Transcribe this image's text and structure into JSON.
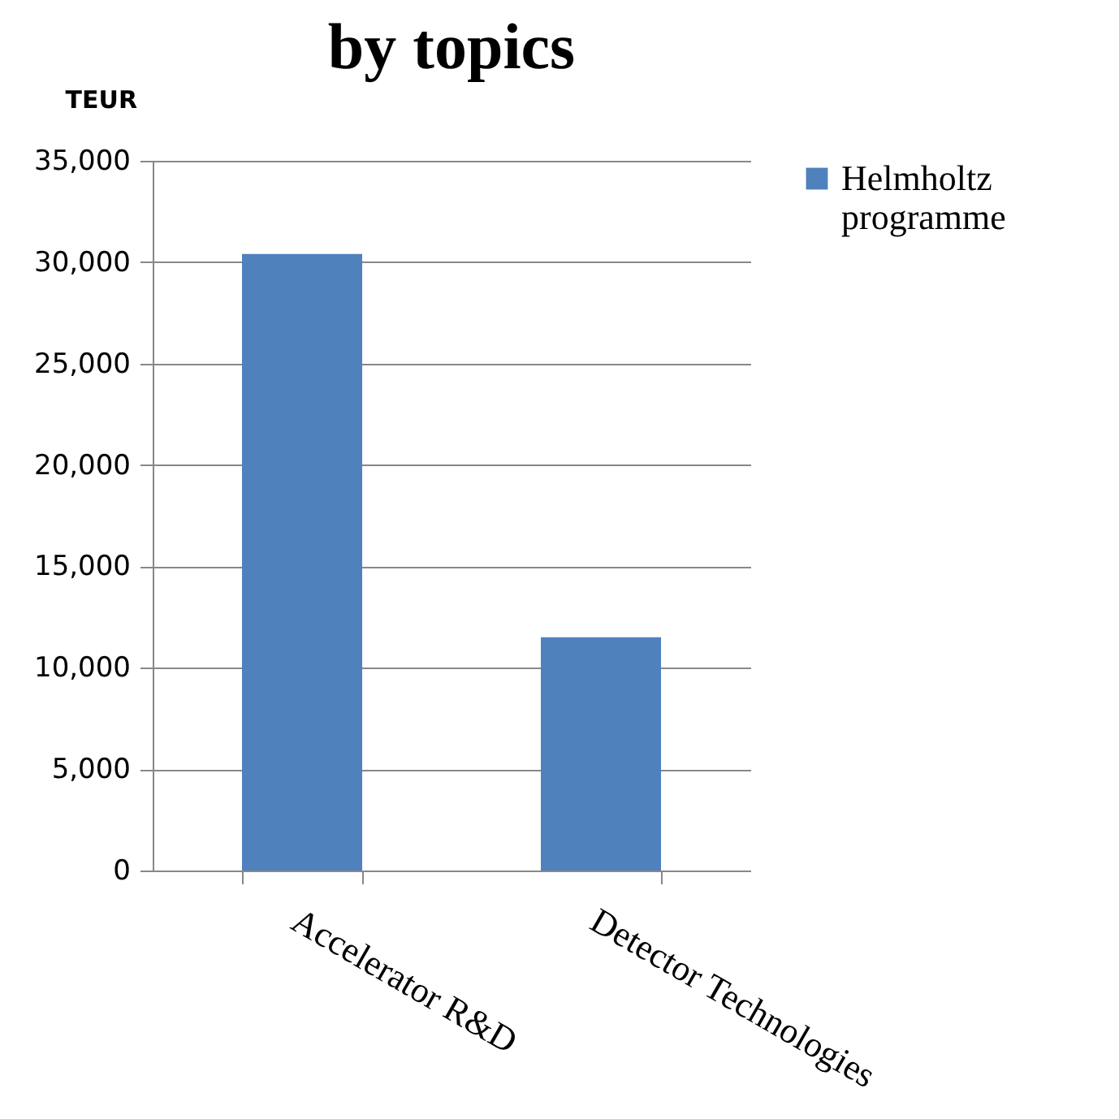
{
  "chart_data": {
    "type": "bar",
    "title": "by topics",
    "ylabel": "TEUR",
    "categories": [
      "Accelerator R&D",
      "Detector Technologies"
    ],
    "series": [
      {
        "name": "Helmholtz programme",
        "color": "#4f81bd",
        "values": [
          30400,
          11500
        ]
      }
    ],
    "ylim": [
      0,
      35000
    ],
    "yticks": [
      0,
      {
        "value": 5000,
        "label": "5,000"
      },
      {
        "value": 10000,
        "label": "10,000"
      },
      {
        "value": 15000,
        "label": "15,000"
      },
      {
        "value": 20000,
        "label": "20,000"
      },
      {
        "value": 25000,
        "label": "25,000"
      },
      {
        "value": 30000,
        "label": "30,000"
      },
      {
        "value": 35000,
        "label": "35,000"
      }
    ],
    "grid": "y",
    "legend": "right"
  }
}
